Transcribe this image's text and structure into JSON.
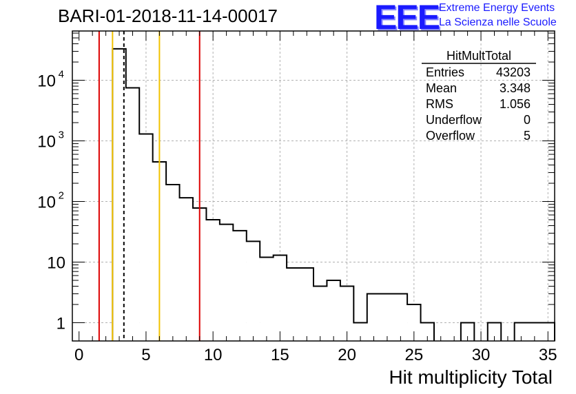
{
  "header": {
    "title": "BARI-01-2018-11-14-00017",
    "logo_text": "EEE",
    "logo_line1": "Extreme Energy Events",
    "logo_line2": "La Scienza nelle Scuole"
  },
  "colors": {
    "red": "#dd0000",
    "yellow": "#f2c200",
    "black": "#000000",
    "grid": "#b0b0b0"
  },
  "chart_data": {
    "type": "bar",
    "style": "step-histogram",
    "title": "BARI-01-2018-11-14-00017",
    "xlabel": "Hit multiplicity Total",
    "ylabel": "",
    "xlim": [
      -0.5,
      35.5
    ],
    "ylim": [
      0.5,
      65000
    ],
    "yscale": "log",
    "grid": true,
    "bin_width": 1,
    "bins": [
      {
        "center": 3,
        "value": 33000
      },
      {
        "center": 4,
        "value": 7500
      },
      {
        "center": 5,
        "value": 1300
      },
      {
        "center": 6,
        "value": 450
      },
      {
        "center": 7,
        "value": 190
      },
      {
        "center": 8,
        "value": 115
      },
      {
        "center": 9,
        "value": 78
      },
      {
        "center": 10,
        "value": 50
      },
      {
        "center": 11,
        "value": 42
      },
      {
        "center": 12,
        "value": 33
      },
      {
        "center": 13,
        "value": 22
      },
      {
        "center": 14,
        "value": 12
      },
      {
        "center": 15,
        "value": 13
      },
      {
        "center": 16,
        "value": 8
      },
      {
        "center": 17,
        "value": 8
      },
      {
        "center": 18,
        "value": 4
      },
      {
        "center": 19,
        "value": 5
      },
      {
        "center": 20,
        "value": 4
      },
      {
        "center": 21,
        "value": 1
      },
      {
        "center": 22,
        "value": 3
      },
      {
        "center": 23,
        "value": 3
      },
      {
        "center": 24,
        "value": 3
      },
      {
        "center": 25,
        "value": 2
      },
      {
        "center": 26,
        "value": 1
      },
      {
        "center": 29,
        "value": 1
      },
      {
        "center": 31,
        "value": 1
      },
      {
        "center": 33,
        "value": 1
      },
      {
        "center": 34,
        "value": 1
      },
      {
        "center": 35,
        "value": 1
      }
    ],
    "xticks": [
      0,
      5,
      10,
      15,
      20,
      25,
      30,
      35
    ],
    "xtick_labels": [
      "0",
      "5",
      "10",
      "15",
      "20",
      "25",
      "30",
      "35"
    ],
    "yticks": [
      1,
      10,
      100,
      1000,
      10000
    ],
    "ytick_labels": [
      {
        "base": "1",
        "exp": ""
      },
      {
        "base": "10",
        "exp": ""
      },
      {
        "base": "10",
        "exp": "2"
      },
      {
        "base": "10",
        "exp": "3"
      },
      {
        "base": "10",
        "exp": "4"
      }
    ],
    "vlines": [
      {
        "x": 1.5,
        "color": "red",
        "style": "solid"
      },
      {
        "x": 2.5,
        "color": "yellow",
        "style": "solid"
      },
      {
        "x": 3.348,
        "color": "black",
        "style": "dashed"
      },
      {
        "x": 6.0,
        "color": "yellow",
        "style": "solid"
      },
      {
        "x": 9.0,
        "color": "red",
        "style": "solid"
      }
    ],
    "stats": {
      "name": "HitMultTotal",
      "rows": [
        {
          "label": "Entries",
          "value": "43203"
        },
        {
          "label": "Mean",
          "value": "3.348"
        },
        {
          "label": "RMS",
          "value": "1.056"
        },
        {
          "label": "Underflow",
          "value": "0"
        },
        {
          "label": "Overflow",
          "value": "5"
        }
      ]
    }
  }
}
